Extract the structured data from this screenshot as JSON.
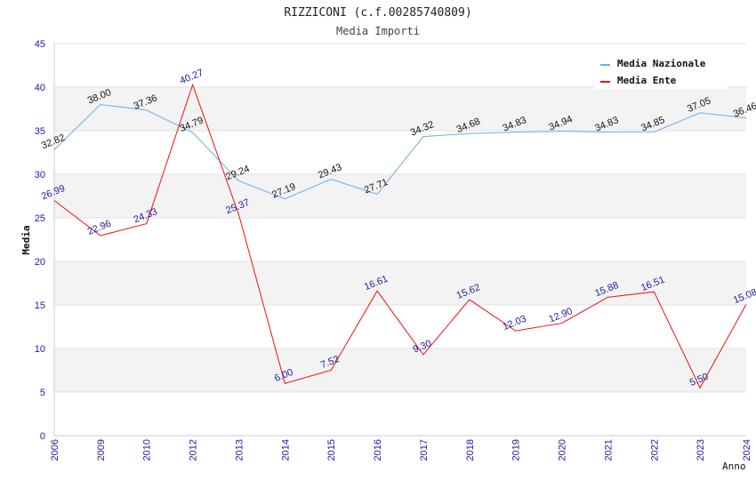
{
  "chart_data": {
    "type": "line",
    "title": "RIZZICONI (c.f.00285740809)",
    "subtitle": "Media Importi",
    "xlabel": "Anno",
    "ylabel": "Media",
    "ylim": [
      0,
      45
    ],
    "yticks": [
      0,
      5,
      10,
      15,
      20,
      25,
      30,
      35,
      40,
      45
    ],
    "categories": [
      "2006",
      "2009",
      "2010",
      "2012",
      "2013",
      "2014",
      "2015",
      "2016",
      "2017",
      "2018",
      "2019",
      "2020",
      "2021",
      "2022",
      "2023",
      "2024"
    ],
    "series": [
      {
        "name": "Media Nazionale",
        "color": "#6aaee8",
        "values": [
          32.82,
          38.0,
          37.36,
          34.79,
          29.24,
          27.19,
          29.43,
          27.71,
          34.32,
          34.68,
          34.83,
          34.94,
          34.83,
          34.85,
          37.05,
          36.46
        ],
        "labels": [
          "32.82",
          "38.00",
          "37.36",
          "34.79",
          "29.24",
          "27.19",
          "29.43",
          "27.71",
          "34.32",
          "34.68",
          "34.83",
          "34.94",
          "34.83",
          "34.85",
          "37.05",
          "36.46"
        ]
      },
      {
        "name": "Media Ente",
        "color": "#ee1111",
        "values": [
          26.99,
          22.96,
          24.33,
          40.27,
          25.37,
          6.0,
          7.52,
          16.61,
          9.3,
          15.62,
          12.03,
          12.9,
          15.88,
          16.51,
          5.5,
          15.08
        ],
        "labels": [
          "26.99",
          "22.96",
          "24.33",
          "40.27",
          "25.37",
          "6.00",
          "7.52",
          "16.61",
          "9.30",
          "15.62",
          "12.03",
          "12.90",
          "15.88",
          "16.51",
          "5.50",
          "15.08"
        ]
      }
    ],
    "legend_position": "top-right",
    "grid": true
  }
}
